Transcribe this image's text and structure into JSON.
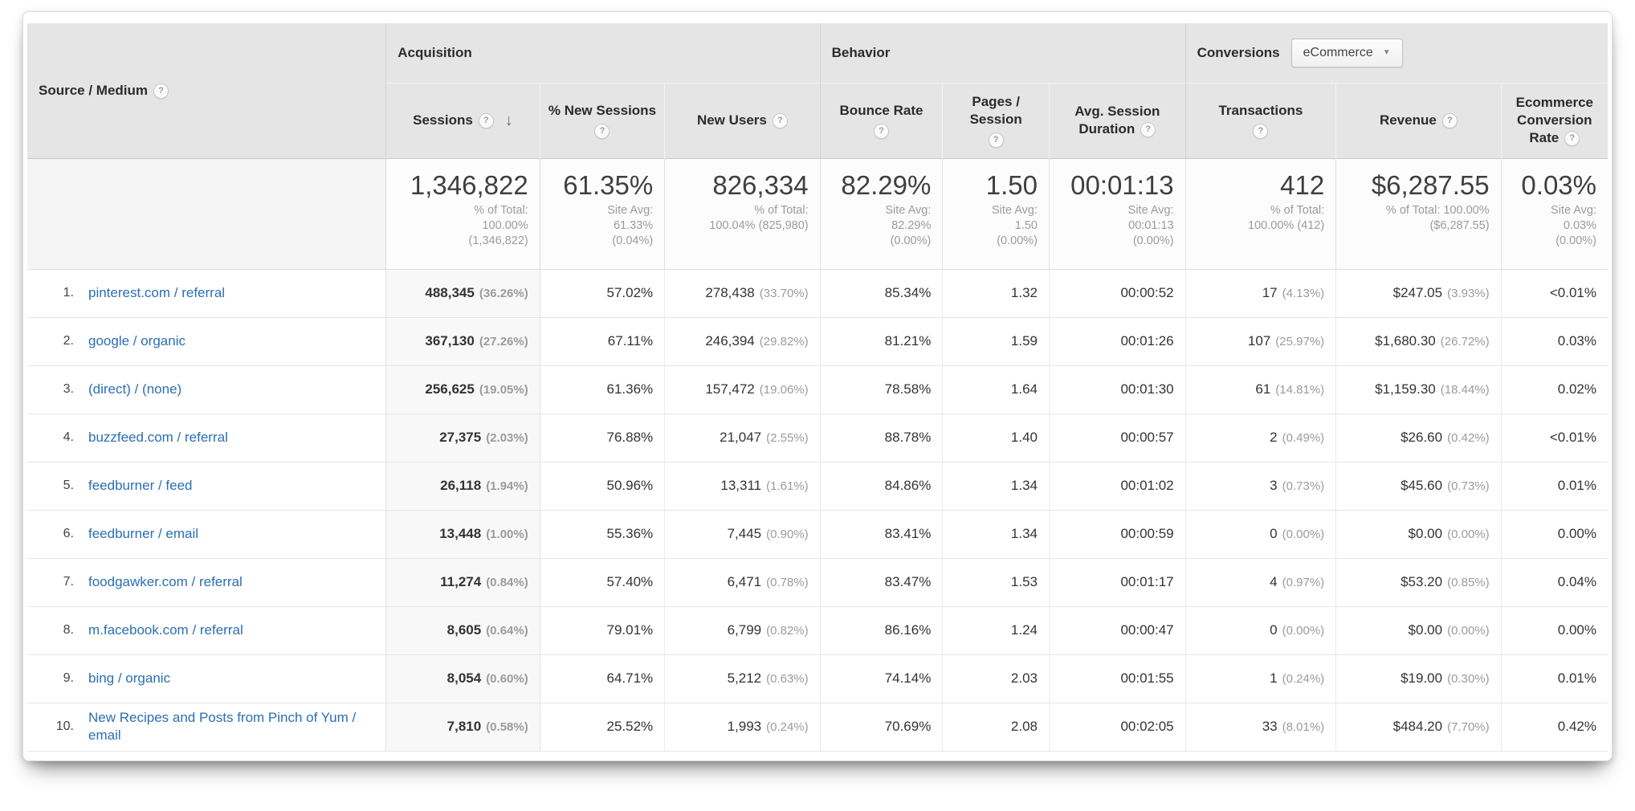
{
  "icons": {
    "help_glyph": "?",
    "sort_desc": "↓",
    "caret_down": "▼"
  },
  "colors": {
    "link_blue": "#2a6fb5",
    "header_bg": "#e5e5e5",
    "muted_gray": "#9b9b9b"
  },
  "table": {
    "dimension_header": "Source / Medium",
    "sections": [
      {
        "label": "Acquisition"
      },
      {
        "label": "Behavior"
      },
      {
        "label": "Conversions"
      }
    ],
    "conversions_selector": {
      "value": "eCommerce"
    },
    "columns": [
      {
        "label": "Sessions"
      },
      {
        "label": "% New Sessions"
      },
      {
        "label": "New Users"
      },
      {
        "label": "Bounce Rate"
      },
      {
        "label": "Pages / Session"
      },
      {
        "label": "Avg. Session Duration"
      },
      {
        "label": "Transactions"
      },
      {
        "label": "Revenue"
      },
      {
        "label": "Ecommerce Conversion Rate"
      }
    ],
    "summary": [
      {
        "value": "1,346,822",
        "sub": [
          "% of Total:",
          "100.00%",
          "(1,346,822)"
        ]
      },
      {
        "value": "61.35%",
        "sub": [
          "Site Avg:",
          "61.33%",
          "(0.04%)"
        ]
      },
      {
        "value": "826,334",
        "sub": [
          "% of Total:",
          "100.04% (825,980)"
        ]
      },
      {
        "value": "82.29%",
        "sub": [
          "Site Avg:",
          "82.29%",
          "(0.00%)"
        ]
      },
      {
        "value": "1.50",
        "sub": [
          "Site Avg:",
          "1.50",
          "(0.00%)"
        ]
      },
      {
        "value": "00:01:13",
        "sub": [
          "Site Avg:",
          "00:01:13",
          "(0.00%)"
        ]
      },
      {
        "value": "412",
        "sub": [
          "% of Total:",
          "100.00% (412)"
        ]
      },
      {
        "value": "$6,287.55",
        "sub": [
          "% of Total: 100.00%",
          "($6,287.55)"
        ]
      },
      {
        "value": "0.03%",
        "sub": [
          "Site Avg:",
          "0.03%",
          "(0.00%)"
        ]
      }
    ],
    "rows": [
      {
        "index": "1.",
        "source": "pinterest.com / referral",
        "sessions": "488,345",
        "sessions_pct": "(36.26%)",
        "new_sessions": "57.02%",
        "new_users": "278,438",
        "new_users_pct": "(33.70%)",
        "bounce": "85.34%",
        "pages": "1.32",
        "duration": "00:00:52",
        "transactions": "17",
        "transactions_pct": "(4.13%)",
        "revenue": "$247.05",
        "revenue_pct": "(3.93%)",
        "ecomm": "<0.01%"
      },
      {
        "index": "2.",
        "source": "google / organic",
        "sessions": "367,130",
        "sessions_pct": "(27.26%)",
        "new_sessions": "67.11%",
        "new_users": "246,394",
        "new_users_pct": "(29.82%)",
        "bounce": "81.21%",
        "pages": "1.59",
        "duration": "00:01:26",
        "transactions": "107",
        "transactions_pct": "(25.97%)",
        "revenue": "$1,680.30",
        "revenue_pct": "(26.72%)",
        "ecomm": "0.03%"
      },
      {
        "index": "3.",
        "source": "(direct) / (none)",
        "sessions": "256,625",
        "sessions_pct": "(19.05%)",
        "new_sessions": "61.36%",
        "new_users": "157,472",
        "new_users_pct": "(19.06%)",
        "bounce": "78.58%",
        "pages": "1.64",
        "duration": "00:01:30",
        "transactions": "61",
        "transactions_pct": "(14.81%)",
        "revenue": "$1,159.30",
        "revenue_pct": "(18.44%)",
        "ecomm": "0.02%"
      },
      {
        "index": "4.",
        "source": "buzzfeed.com / referral",
        "sessions": "27,375",
        "sessions_pct": "(2.03%)",
        "new_sessions": "76.88%",
        "new_users": "21,047",
        "new_users_pct": "(2.55%)",
        "bounce": "88.78%",
        "pages": "1.40",
        "duration": "00:00:57",
        "transactions": "2",
        "transactions_pct": "(0.49%)",
        "revenue": "$26.60",
        "revenue_pct": "(0.42%)",
        "ecomm": "<0.01%"
      },
      {
        "index": "5.",
        "source": "feedburner / feed",
        "sessions": "26,118",
        "sessions_pct": "(1.94%)",
        "new_sessions": "50.96%",
        "new_users": "13,311",
        "new_users_pct": "(1.61%)",
        "bounce": "84.86%",
        "pages": "1.34",
        "duration": "00:01:02",
        "transactions": "3",
        "transactions_pct": "(0.73%)",
        "revenue": "$45.60",
        "revenue_pct": "(0.73%)",
        "ecomm": "0.01%"
      },
      {
        "index": "6.",
        "source": "feedburner / email",
        "sessions": "13,448",
        "sessions_pct": "(1.00%)",
        "new_sessions": "55.36%",
        "new_users": "7,445",
        "new_users_pct": "(0.90%)",
        "bounce": "83.41%",
        "pages": "1.34",
        "duration": "00:00:59",
        "transactions": "0",
        "transactions_pct": "(0.00%)",
        "revenue": "$0.00",
        "revenue_pct": "(0.00%)",
        "ecomm": "0.00%"
      },
      {
        "index": "7.",
        "source": "foodgawker.com / referral",
        "sessions": "11,274",
        "sessions_pct": "(0.84%)",
        "new_sessions": "57.40%",
        "new_users": "6,471",
        "new_users_pct": "(0.78%)",
        "bounce": "83.47%",
        "pages": "1.53",
        "duration": "00:01:17",
        "transactions": "4",
        "transactions_pct": "(0.97%)",
        "revenue": "$53.20",
        "revenue_pct": "(0.85%)",
        "ecomm": "0.04%"
      },
      {
        "index": "8.",
        "source": "m.facebook.com / referral",
        "sessions": "8,605",
        "sessions_pct": "(0.64%)",
        "new_sessions": "79.01%",
        "new_users": "6,799",
        "new_users_pct": "(0.82%)",
        "bounce": "86.16%",
        "pages": "1.24",
        "duration": "00:00:47",
        "transactions": "0",
        "transactions_pct": "(0.00%)",
        "revenue": "$0.00",
        "revenue_pct": "(0.00%)",
        "ecomm": "0.00%"
      },
      {
        "index": "9.",
        "source": "bing / organic",
        "sessions": "8,054",
        "sessions_pct": "(0.60%)",
        "new_sessions": "64.71%",
        "new_users": "5,212",
        "new_users_pct": "(0.63%)",
        "bounce": "74.14%",
        "pages": "2.03",
        "duration": "00:01:55",
        "transactions": "1",
        "transactions_pct": "(0.24%)",
        "revenue": "$19.00",
        "revenue_pct": "(0.30%)",
        "ecomm": "0.01%"
      },
      {
        "index": "10.",
        "source": "New Recipes and Posts from Pinch of Yum / email",
        "sessions": "7,810",
        "sessions_pct": "(0.58%)",
        "new_sessions": "25.52%",
        "new_users": "1,993",
        "new_users_pct": "(0.24%)",
        "bounce": "70.69%",
        "pages": "2.08",
        "duration": "00:02:05",
        "transactions": "33",
        "transactions_pct": "(8.01%)",
        "revenue": "$484.20",
        "revenue_pct": "(7.70%)",
        "ecomm": "0.42%"
      }
    ]
  }
}
